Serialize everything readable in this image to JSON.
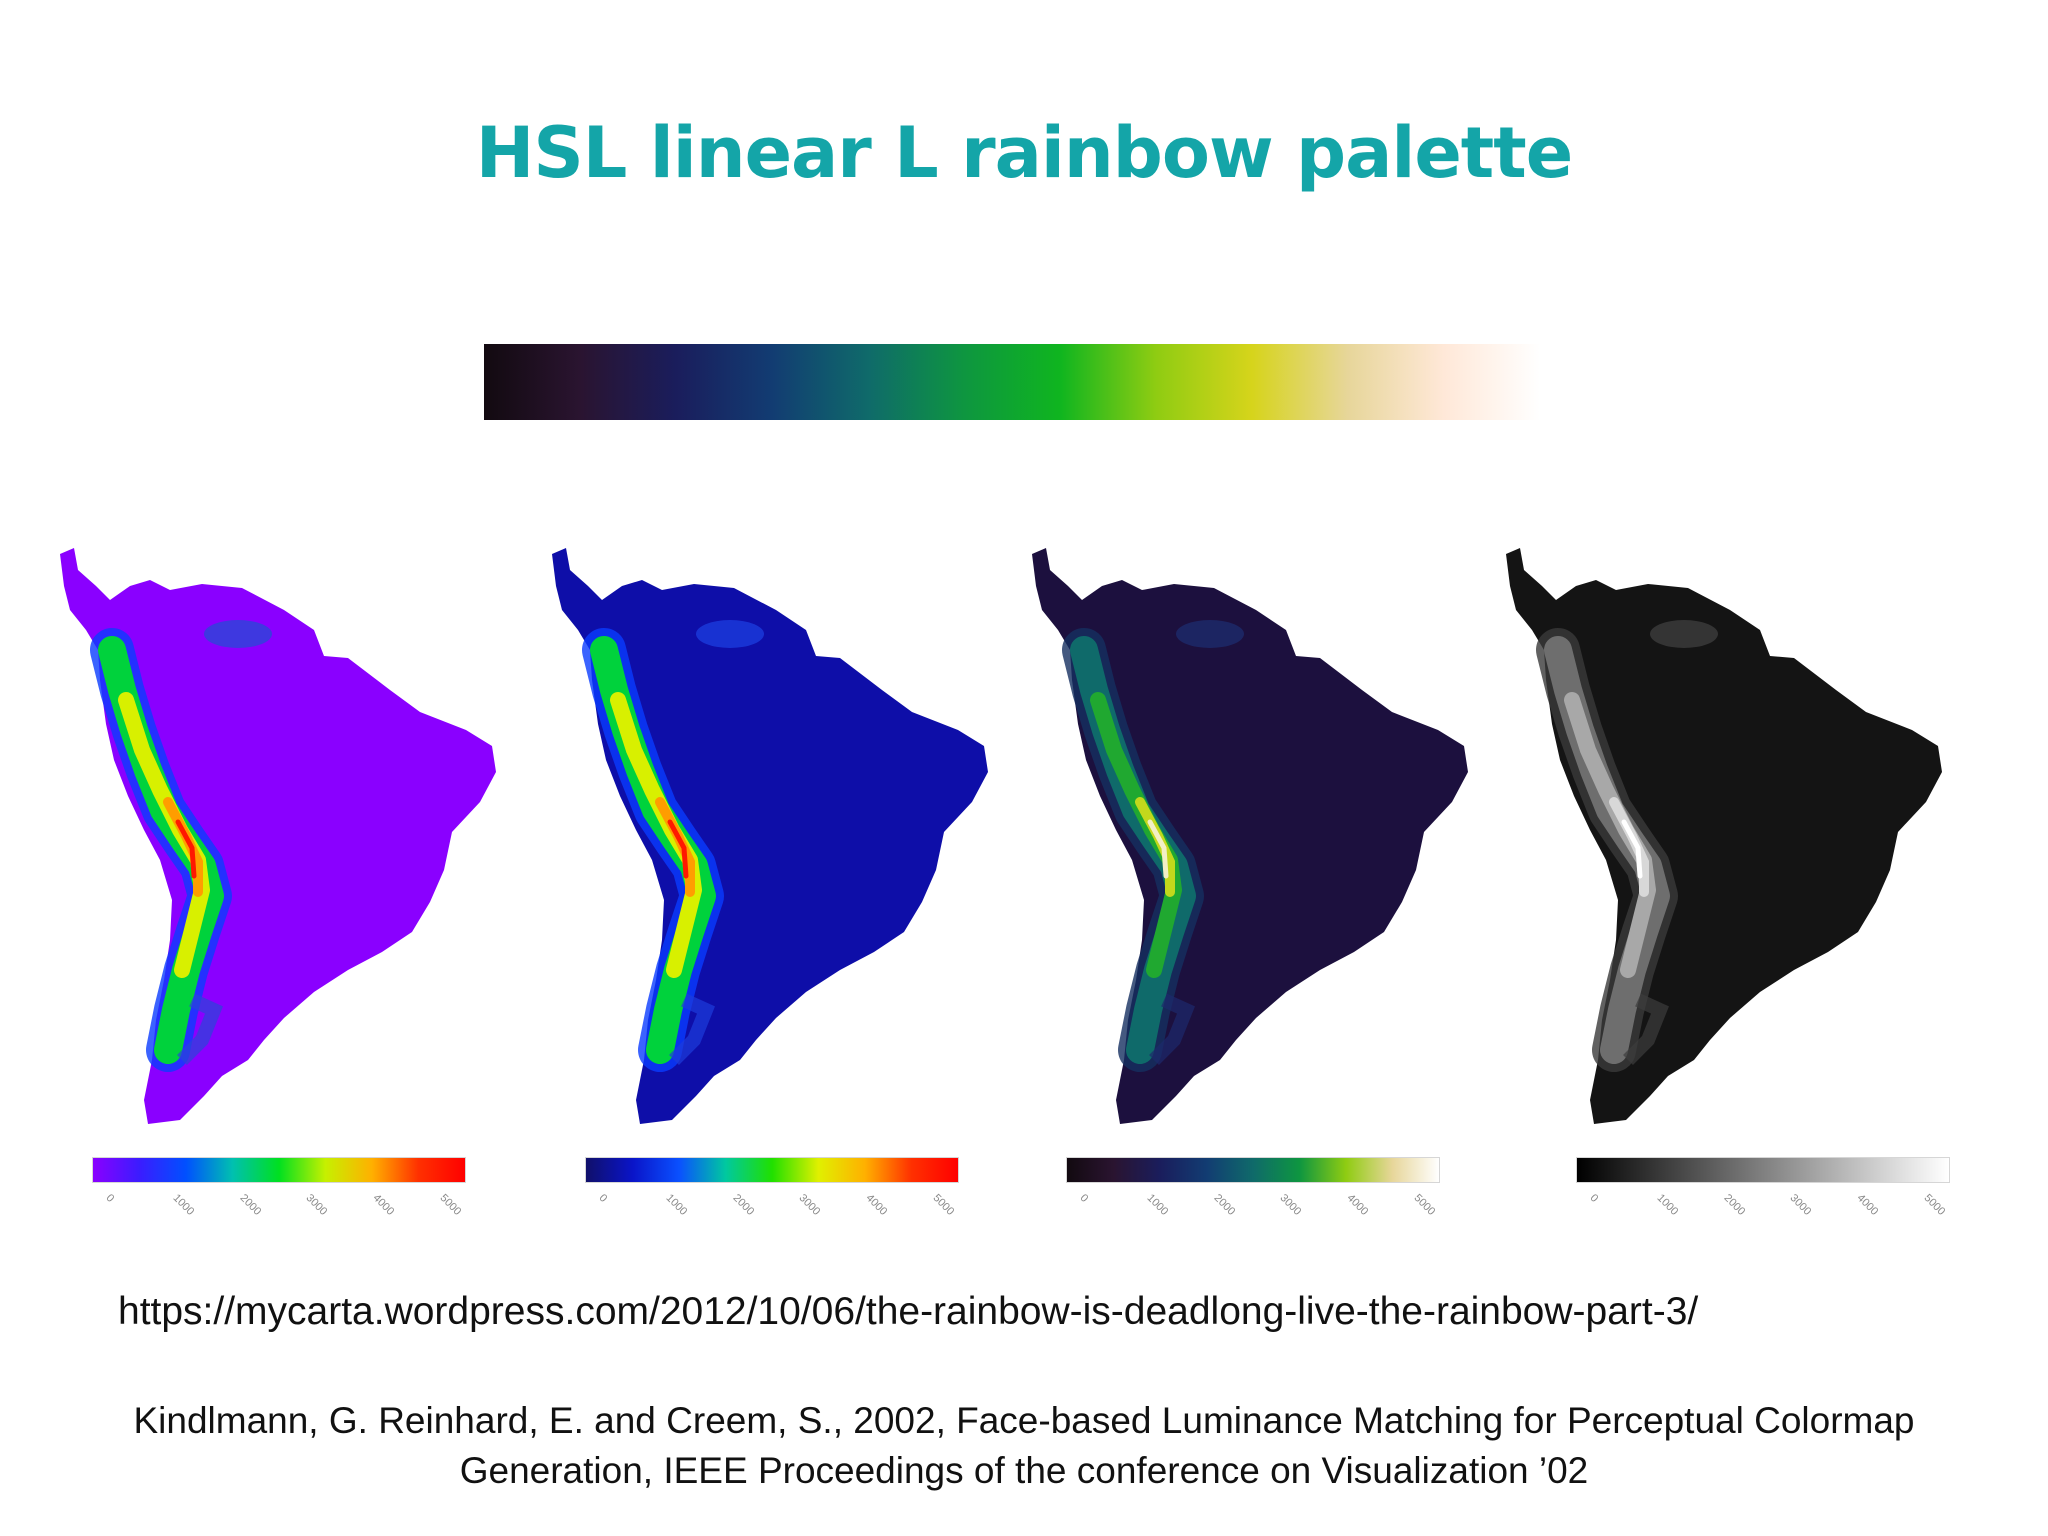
{
  "slide": {
    "title": "HSL linear L rainbow palette",
    "title_color": "#14a5a8",
    "url": "https://mycarta.wordpress.com/2012/10/06/the-rainbow-is-deadlong-live-the-rainbow-part-3/",
    "citation_line1": "Kindlmann, G. Reinhard, E. and Creem, S., 2002, Face-based Luminance Matching for Perceptual Colormap",
    "citation_line2": "Generation, IEEE Proceedings of the conference on Visualization ’02"
  },
  "palette_colors": [
    "#120a10",
    "#2a1430",
    "#1a1d5c",
    "#123c72",
    "#0f6a6a",
    "#0e9640",
    "#0fb51f",
    "#8fcc12",
    "#d6d41b",
    "#e7d69a",
    "#ffe8d8",
    "#ffffff"
  ],
  "maps": [
    {
      "name": "rainbow-purple",
      "base": "#8a00ff",
      "coast": "#2a46d8",
      "ramp": [
        "#8a00ff",
        "#0a3cff",
        "#00d23c",
        "#d8f000",
        "#ff9d00",
        "#ff1800"
      ],
      "bar": [
        "#8a00ff",
        "#3b1cff",
        "#0050ff",
        "#00c0b0",
        "#00e020",
        "#c6f000",
        "#ffb000",
        "#ff3000",
        "#ff0000"
      ]
    },
    {
      "name": "rainbow-blue",
      "base": "#0e0ea8",
      "coast": "#1c3cdc",
      "ramp": [
        "#0e0ea8",
        "#0a3cff",
        "#00d23c",
        "#d8f000",
        "#ff9d00",
        "#ff1800"
      ],
      "bar": [
        "#10106a",
        "#0a14c8",
        "#0a50ff",
        "#00c8a0",
        "#20e000",
        "#e0f000",
        "#ffb000",
        "#ff3000",
        "#ff0000"
      ]
    },
    {
      "name": "linear-l-rainbow",
      "base": "#1c103e",
      "coast": "#1d2a6c",
      "ramp": [
        "#1c103e",
        "#153060",
        "#0f6a6a",
        "#20a830",
        "#c2d81c",
        "#f2efc6"
      ],
      "bar": [
        "#120a10",
        "#2a1430",
        "#1a1d5c",
        "#123c72",
        "#0f6a6a",
        "#0e9640",
        "#8fcc12",
        "#e7d69a",
        "#ffffff"
      ]
    },
    {
      "name": "grayscale",
      "base": "#141414",
      "coast": "#3c3c3c",
      "ramp": [
        "#141414",
        "#3a3a3a",
        "#6e6e6e",
        "#a8a8a8",
        "#d8d8d8",
        "#ffffff"
      ],
      "bar": [
        "#000000",
        "#202020",
        "#404040",
        "#606060",
        "#808080",
        "#a0a0a0",
        "#c0c0c0",
        "#e0e0e0",
        "#ffffff"
      ]
    }
  ],
  "scale_ticks": [
    "0",
    "1000",
    "2000",
    "3000",
    "4000",
    "5000"
  ]
}
